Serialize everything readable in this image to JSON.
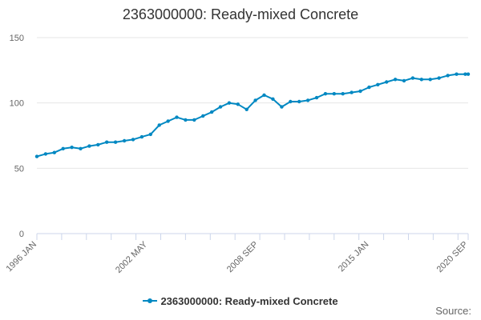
{
  "chart_data": {
    "type": "line",
    "title": "2363000000: Ready-mixed Concrete",
    "series": [
      {
        "name": "2363000000: Ready-mixed Concrete",
        "x": [
          "1996-01",
          "1996-07",
          "1997-01",
          "1997-07",
          "1998-01",
          "1998-07",
          "1999-01",
          "1999-07",
          "2000-01",
          "2000-07",
          "2001-01",
          "2001-07",
          "2002-01",
          "2002-07",
          "2003-01",
          "2003-07",
          "2004-01",
          "2004-07",
          "2005-01",
          "2005-07",
          "2006-01",
          "2006-07",
          "2007-01",
          "2007-07",
          "2008-01",
          "2008-07",
          "2009-01",
          "2009-07",
          "2010-01",
          "2010-07",
          "2011-01",
          "2011-07",
          "2012-01",
          "2012-07",
          "2013-01",
          "2013-07",
          "2014-01",
          "2014-07",
          "2015-01",
          "2015-07",
          "2016-01",
          "2016-07",
          "2017-01",
          "2017-07",
          "2018-01",
          "2018-07",
          "2019-01",
          "2019-07",
          "2020-01",
          "2020-07",
          "2020-09"
        ],
        "values": [
          59,
          61,
          62,
          65,
          66,
          65,
          67,
          68,
          70,
          70,
          71,
          72,
          74,
          76,
          83,
          86,
          89,
          87,
          87,
          90,
          93,
          97,
          100,
          99,
          95,
          102,
          106,
          103,
          97,
          101,
          101,
          102,
          104,
          107,
          107,
          107,
          108,
          109,
          112,
          114,
          116,
          118,
          117,
          119,
          118,
          118,
          119,
          121,
          122,
          122,
          122
        ]
      }
    ],
    "x_tick_labels": [
      "1996 JAN",
      "2002 MAY",
      "2008 SEP",
      "2015 JAN",
      "2020 SEP"
    ],
    "y_ticks": [
      0,
      50,
      100,
      150
    ],
    "ylim": [
      0,
      150
    ],
    "xlim": [
      "1996-01",
      "2020-09"
    ],
    "grid": true,
    "legend_position": "bottom",
    "line_color": "#0088C2",
    "source_label": "Source:"
  }
}
